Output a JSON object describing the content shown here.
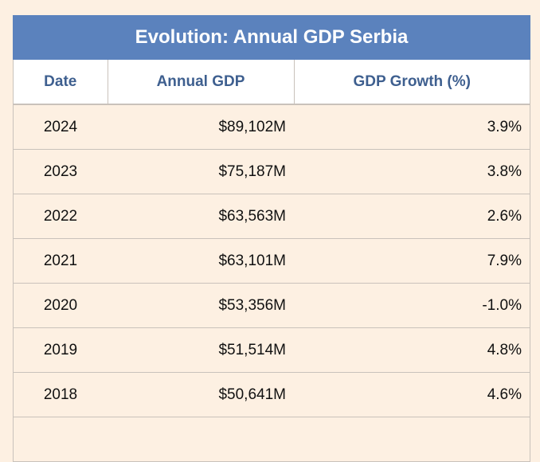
{
  "table": {
    "title": "Evolution: Annual GDP Serbia",
    "headers": {
      "date": "Date",
      "gdp": "Annual GDP",
      "growth": "GDP Growth (%)"
    },
    "rows": [
      {
        "date": "2024",
        "gdp": "$89,102M",
        "growth": "3.9%"
      },
      {
        "date": "2023",
        "gdp": "$75,187M",
        "growth": "3.8%"
      },
      {
        "date": "2022",
        "gdp": "$63,563M",
        "growth": "2.6%"
      },
      {
        "date": "2021",
        "gdp": "$63,101M",
        "growth": "7.9%"
      },
      {
        "date": "2020",
        "gdp": "$53,356M",
        "growth": "-1.0%"
      },
      {
        "date": "2019",
        "gdp": "$51,514M",
        "growth": "4.8%"
      },
      {
        "date": "2018",
        "gdp": "$50,641M",
        "growth": "4.6%"
      },
      {
        "date": "",
        "gdp": "",
        "growth": ""
      }
    ]
  }
}
